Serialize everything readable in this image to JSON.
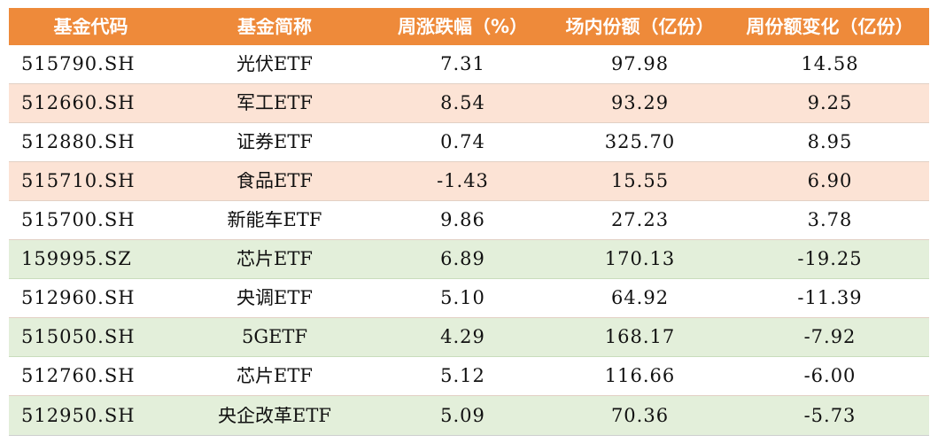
{
  "table": {
    "headers": [
      "基金代码",
      "基金简称",
      "周涨跌幅（%）",
      "场内份额（亿份）",
      "周份额变化（亿份）"
    ],
    "rows": [
      {
        "code": "515790.SH",
        "name": "光伏ETF",
        "weekly_change": "7.31",
        "shares": "97.98",
        "share_change": "14.58",
        "tint": "white"
      },
      {
        "code": "512660.SH",
        "name": "军工ETF",
        "weekly_change": "8.54",
        "shares": "93.29",
        "share_change": "9.25",
        "tint": "peach"
      },
      {
        "code": "512880.SH",
        "name": "证券ETF",
        "weekly_change": "0.74",
        "shares": "325.70",
        "share_change": "8.95",
        "tint": "white"
      },
      {
        "code": "515710.SH",
        "name": "食品ETF",
        "weekly_change": "-1.43",
        "shares": "15.55",
        "share_change": "6.90",
        "tint": "peach"
      },
      {
        "code": "515700.SH",
        "name": "新能车ETF",
        "weekly_change": "9.86",
        "shares": "27.23",
        "share_change": "3.78",
        "tint": "white"
      },
      {
        "code": "159995.SZ",
        "name": "芯片ETF",
        "weekly_change": "6.89",
        "shares": "170.13",
        "share_change": "-19.25",
        "tint": "green"
      },
      {
        "code": "512960.SH",
        "name": "央调ETF",
        "weekly_change": "5.10",
        "shares": "64.92",
        "share_change": "-11.39",
        "tint": "white"
      },
      {
        "code": "515050.SH",
        "name": "5GETF",
        "weekly_change": "4.29",
        "shares": "168.17",
        "share_change": "-7.92",
        "tint": "green"
      },
      {
        "code": "512760.SH",
        "name": "芯片ETF",
        "weekly_change": "5.12",
        "shares": "116.66",
        "share_change": "-6.00",
        "tint": "white"
      },
      {
        "code": "512950.SH",
        "name": "央企改革ETF",
        "weekly_change": "5.09",
        "shares": "70.36",
        "share_change": "-5.73",
        "tint": "green"
      }
    ]
  },
  "colors": {
    "header_bg": "#ee8a3a",
    "row_peach": "#fce3d5",
    "row_green": "#e3efda",
    "row_white": "#ffffff"
  }
}
